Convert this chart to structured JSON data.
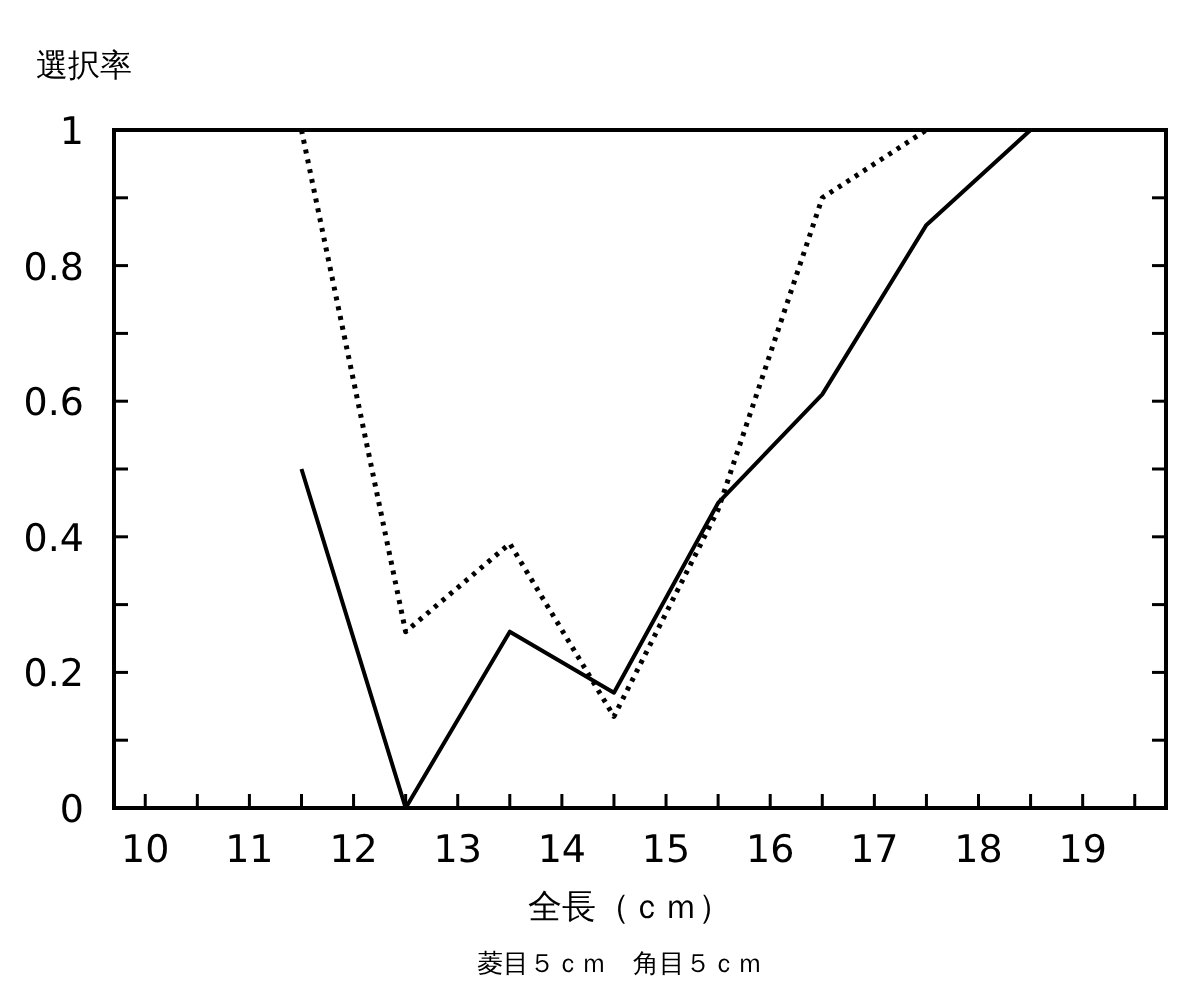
{
  "chart_data": {
    "type": "line",
    "ylabel": "選択率",
    "xlabel": "全長（ｃｍ）",
    "annotations": [
      "菱目５ｃｍ　角目５ｃｍ"
    ],
    "xlim": [
      9.7,
      19.8
    ],
    "xticks": [
      10,
      {
        "value": 10.5,
        "label": null
      },
      11,
      {
        "value": 11.5,
        "label": null
      },
      12,
      {
        "value": 12.5,
        "label": null
      },
      13,
      {
        "value": 13.5,
        "label": null
      },
      14,
      {
        "value": 14.5,
        "label": null
      },
      15,
      {
        "value": 15.5,
        "label": null
      },
      16,
      {
        "value": 16.5,
        "label": null
      },
      17,
      {
        "value": 17.5,
        "label": null
      },
      18,
      {
        "value": 18.5,
        "label": null
      },
      19,
      {
        "value": 19.5,
        "label": null
      }
    ],
    "ylim": [
      0,
      1
    ],
    "yticks": [
      0,
      {
        "value": 0.1,
        "label": null
      },
      0.2,
      {
        "value": 0.3,
        "label": null
      },
      0.4,
      {
        "value": 0.5,
        "label": null
      },
      0.6,
      {
        "value": 0.7,
        "label": null
      },
      0.8,
      {
        "value": 0.9,
        "label": null
      },
      1
    ],
    "grid": false,
    "marker": "none",
    "series": [
      {
        "color": "#000000",
        "line_style": "solid",
        "x": [
          11.5,
          12.5,
          13.5,
          14.5,
          15.5,
          16.5,
          17.5,
          18.5
        ],
        "values": [
          0.5,
          0,
          0.26,
          0.17,
          0.45,
          0.61,
          0.86,
          1
        ]
      },
      {
        "color": "#000000",
        "line_style": "dotted",
        "x": [
          11.5,
          12.5,
          13.5,
          14.5,
          15.5,
          16.5,
          17.5
        ],
        "values": [
          1,
          0.26,
          0.39,
          0.135,
          0.44,
          0.9,
          1
        ]
      }
    ]
  }
}
